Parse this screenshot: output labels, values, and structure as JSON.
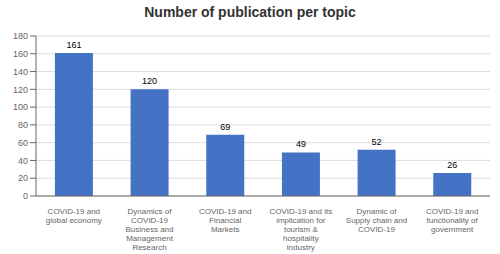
{
  "chart_data": {
    "type": "bar",
    "title": "Number of publication per topic",
    "categories": [
      "COVID-19 and\nglobal economy",
      "Dynamics of\nCOVID-19\nBusiness and\nManagement\nResearch",
      "COVID-19 and\nFinancial\nMarkets",
      "COVID-19 and its\nimplication for\ntourism &\nhospitality\nindustry",
      "Dynamic of\nSupply chain and\nCOVID-19",
      "COVID-19 and\nfunctionality of\ngovernment"
    ],
    "values": [
      161,
      120,
      69,
      49,
      52,
      26
    ],
    "color": "#4472C4",
    "ylim": [
      0,
      180
    ],
    "yticks": [
      0,
      20,
      40,
      60,
      80,
      100,
      120,
      140,
      160,
      180
    ],
    "grid": true,
    "data_labels": true
  }
}
